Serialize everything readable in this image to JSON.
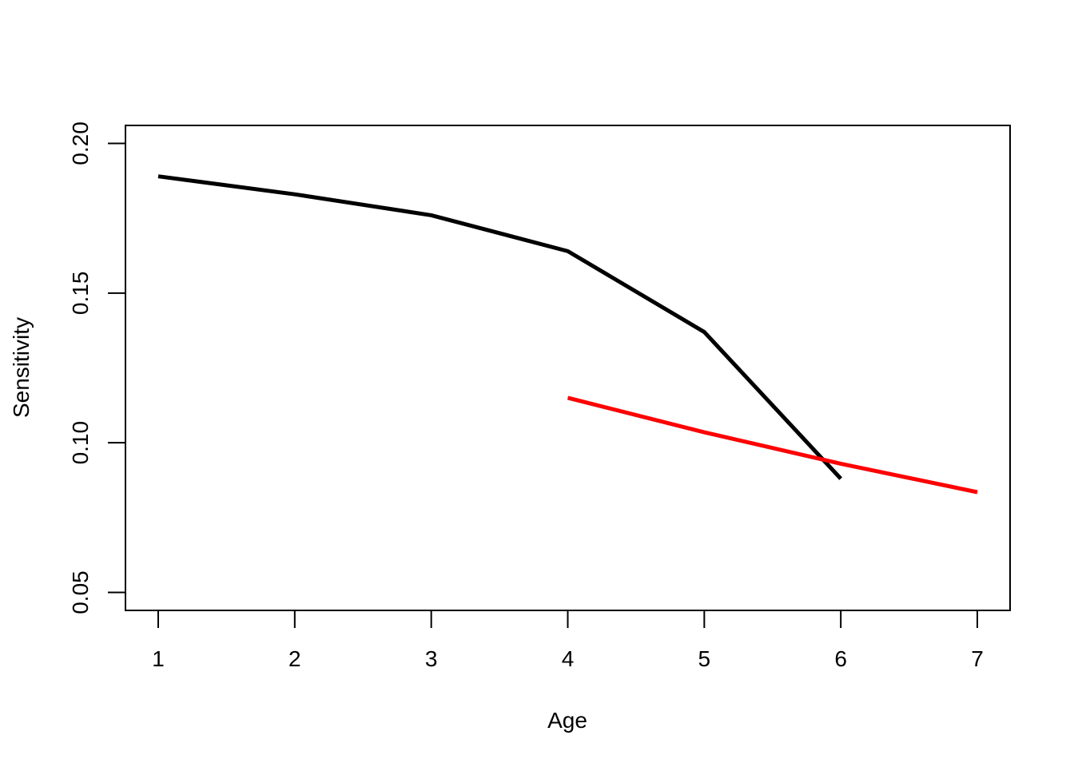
{
  "chart_data": {
    "type": "line",
    "title": "",
    "xlabel": "Age",
    "ylabel": "Sensitivity",
    "xlim": [
      0.76,
      7.24
    ],
    "ylim": [
      0.044,
      0.206
    ],
    "xticks": [
      1,
      2,
      3,
      4,
      5,
      6,
      7
    ],
    "xtick_labels": [
      "1",
      "2",
      "3",
      "4",
      "5",
      "6",
      "7"
    ],
    "yticks": [
      0.05,
      0.1,
      0.15,
      0.2
    ],
    "ytick_labels": [
      "0.05",
      "0.10",
      "0.15",
      "0.20"
    ],
    "grid": false,
    "legend": "none",
    "series": [
      {
        "color": "#000000",
        "x": [
          1,
          2,
          3,
          4,
          5,
          6
        ],
        "y": [
          0.189,
          0.183,
          0.176,
          0.164,
          0.137,
          0.088
        ]
      },
      {
        "color": "#ff0000",
        "x": [
          4,
          5,
          6,
          7
        ],
        "y": [
          0.115,
          0.1035,
          0.093,
          0.0835
        ]
      }
    ]
  }
}
